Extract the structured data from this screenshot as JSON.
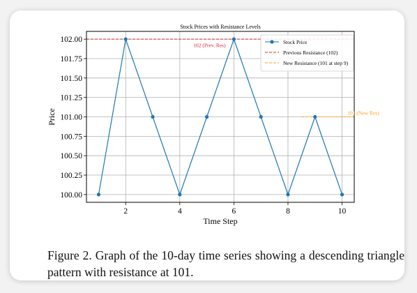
{
  "chart_data": {
    "type": "line",
    "title": "Stock Prices with Resistance Levels",
    "xlabel": "Time Step",
    "ylabel": "Price",
    "x": [
      1,
      2,
      3,
      4,
      5,
      6,
      7,
      8,
      9,
      10
    ],
    "xlim": [
      0.55,
      10.45
    ],
    "ylim": [
      99.9,
      102.1
    ],
    "xticks": [
      2,
      4,
      6,
      8,
      10
    ],
    "yticks": [
      100.0,
      100.25,
      100.5,
      100.75,
      101.0,
      101.25,
      101.5,
      101.75,
      102.0
    ],
    "grid": true,
    "legend_position": "upper right",
    "series": [
      {
        "name": "Stock Price",
        "values": [
          100,
          102,
          101,
          100,
          101,
          102,
          101,
          100,
          101,
          100
        ],
        "color": "#1f77b4",
        "marker": "circle"
      }
    ],
    "reference_lines": [
      {
        "name": "Previous Resistance (102)",
        "y": 102,
        "x_range": [
          0.55,
          10.45
        ],
        "color": "#d62728",
        "style": "dashed"
      },
      {
        "name": "New Resistance (101 at step 9)",
        "y": 101,
        "x_range": [
          8.5,
          10.45
        ],
        "color": "#ff9f1c",
        "style": "dashed"
      }
    ],
    "annotations": [
      {
        "text": "102 (Prev. Res)",
        "x": 4.5,
        "y": 101.97,
        "color": "#d62728"
      },
      {
        "text": "101  (New Res)",
        "x": 10.2,
        "y": 101.1,
        "color": "#ff9f1c"
      }
    ]
  },
  "caption": "Figure 2.  Graph of the 10-day time series showing a descending triangle pattern with resistance at 101."
}
